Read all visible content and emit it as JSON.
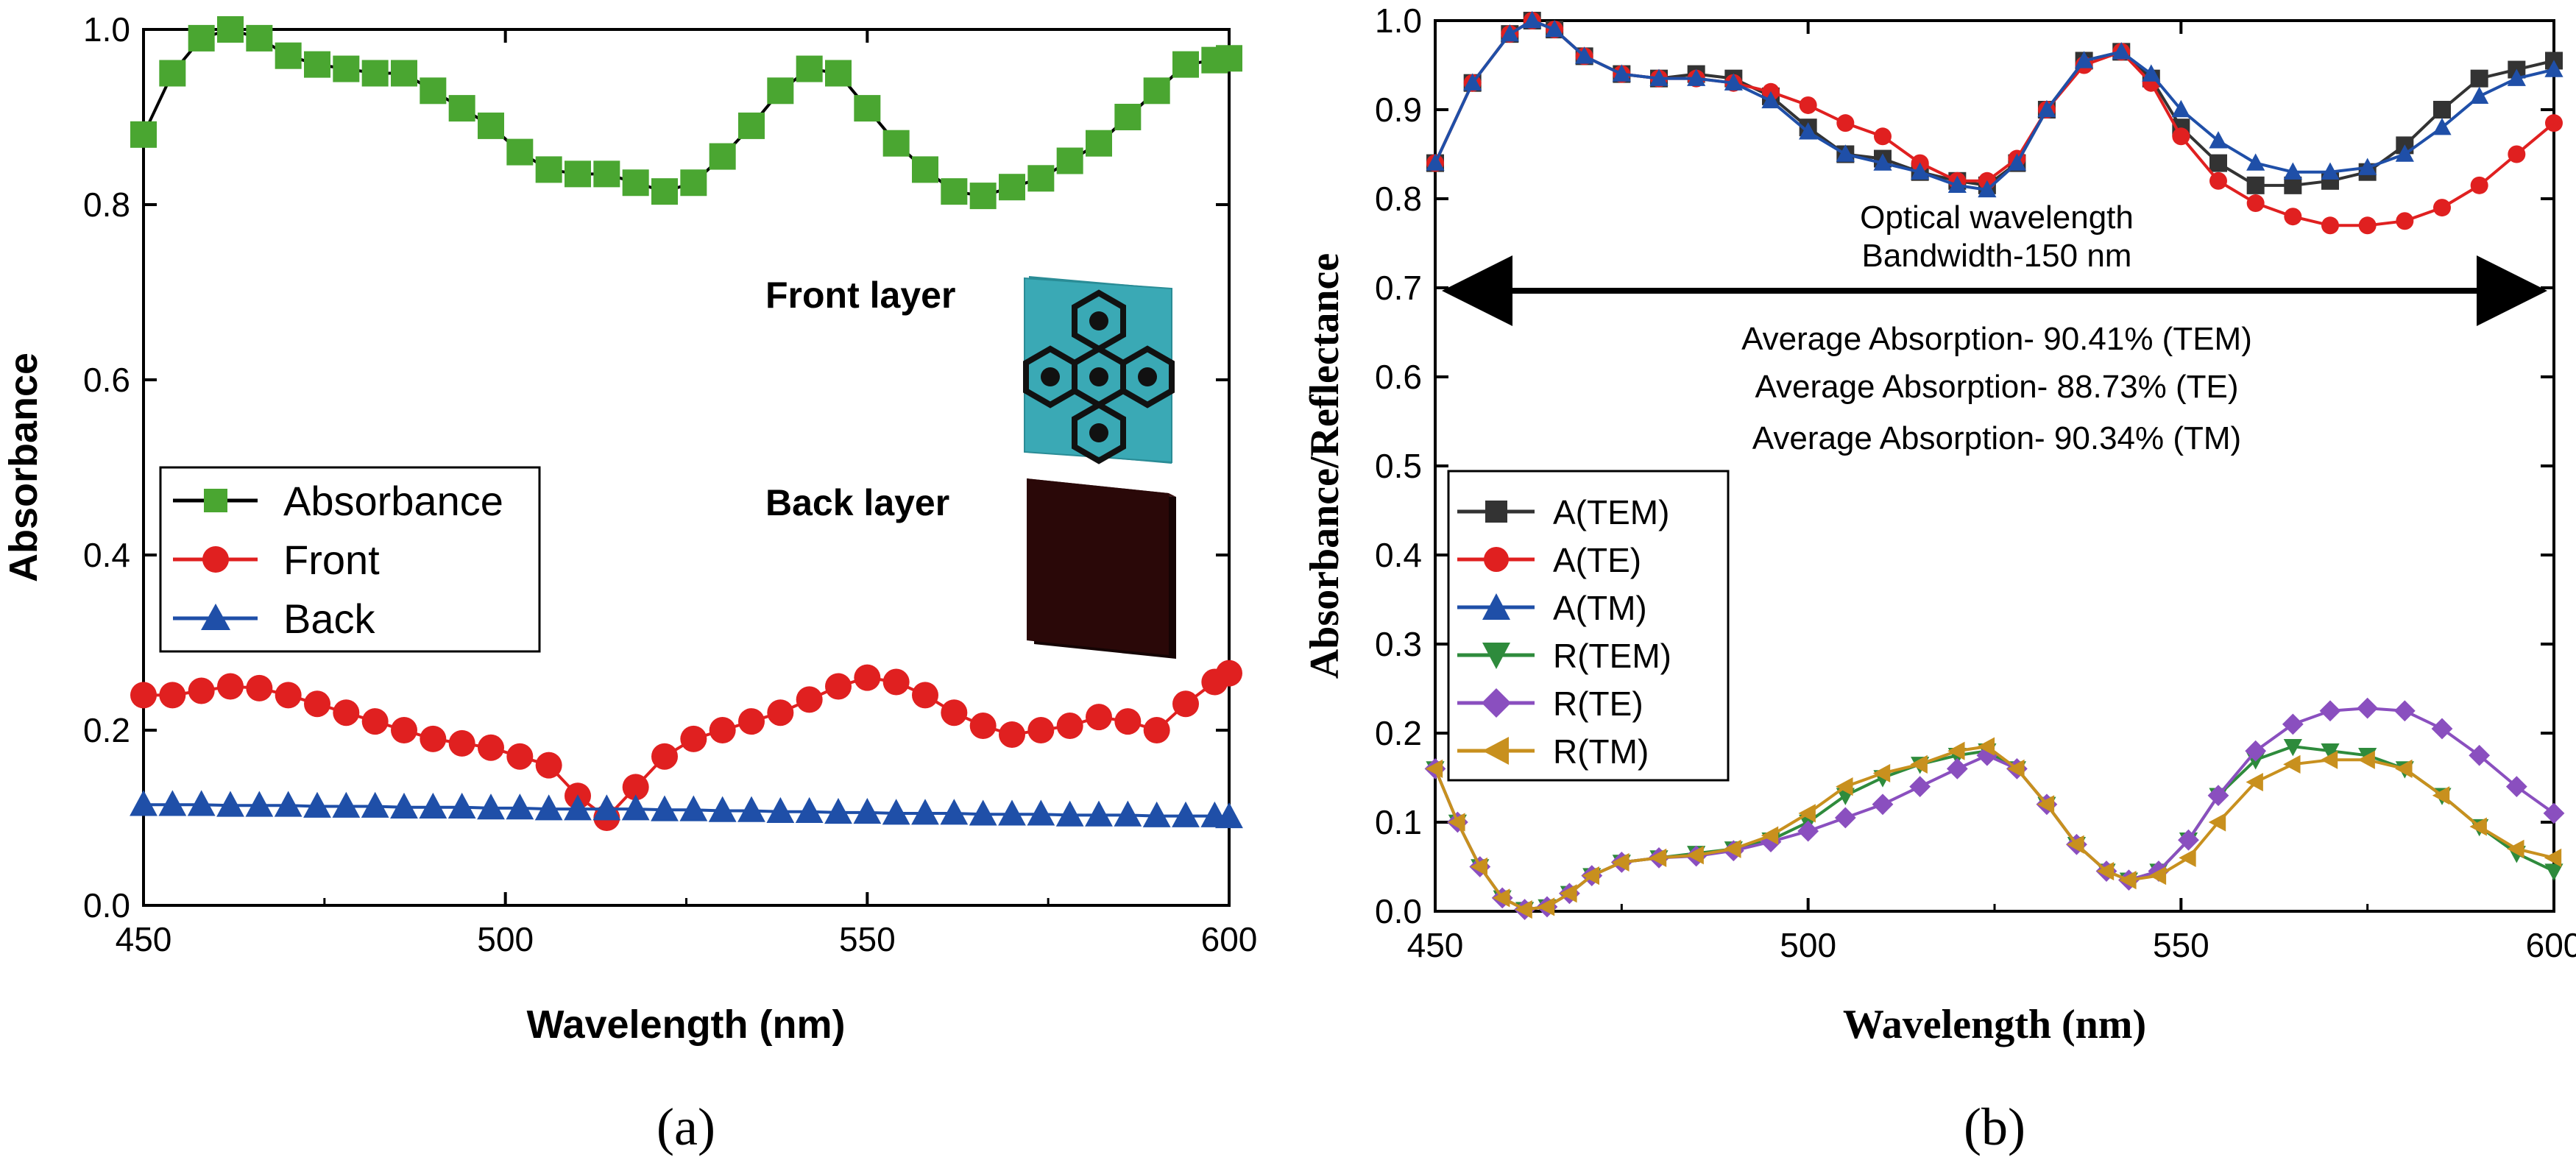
{
  "figure": {
    "panel_a_label": "(a)",
    "panel_b_label": "(b)",
    "colors": {
      "green": "#4aa631",
      "red": "#e02020",
      "blue": "#1f4fa8",
      "black": "#000000",
      "gray": "#333333",
      "darkgreen": "#2e8b3c",
      "purple": "#8a4fbf",
      "gold": "#c8901e",
      "teal": "#3aa9b5",
      "darkbrown": "#2a0808"
    }
  },
  "chart_data": [
    {
      "id": "a",
      "type": "line",
      "title": "",
      "xlabel": "Wavelength (nm)",
      "ylabel": "Absorbance",
      "xlim": [
        450,
        600
      ],
      "ylim": [
        0,
        1.0
      ],
      "xticks": [
        450,
        500,
        550,
        600
      ],
      "yticks": [
        0.0,
        0.2,
        0.4,
        0.6,
        0.8,
        1.0
      ],
      "legend": [
        "Absorbance",
        "Front",
        "Back"
      ],
      "insets": {
        "front_label": "Front layer",
        "back_label": "Back layer"
      },
      "series": [
        {
          "name": "Absorbance",
          "color": "#000000",
          "marker": "square",
          "marker_color": "#4aa631",
          "x": [
            450,
            454,
            458,
            462,
            466,
            470,
            474,
            478,
            482,
            486,
            490,
            494,
            498,
            502,
            506,
            510,
            514,
            518,
            522,
            526,
            530,
            534,
            538,
            542,
            546,
            550,
            554,
            558,
            562,
            566,
            570,
            574,
            578,
            582,
            586,
            590,
            594,
            598,
            600
          ],
          "y": [
            0.88,
            0.95,
            0.99,
            1.0,
            0.99,
            0.97,
            0.96,
            0.955,
            0.95,
            0.95,
            0.93,
            0.91,
            0.89,
            0.86,
            0.84,
            0.835,
            0.835,
            0.825,
            0.815,
            0.825,
            0.855,
            0.89,
            0.93,
            0.955,
            0.95,
            0.91,
            0.87,
            0.84,
            0.815,
            0.81,
            0.82,
            0.83,
            0.85,
            0.87,
            0.9,
            0.93,
            0.96,
            0.965,
            0.967
          ]
        },
        {
          "name": "Front",
          "color": "#e02020",
          "marker": "circle",
          "marker_color": "#e02020",
          "x": [
            450,
            454,
            458,
            462,
            466,
            470,
            474,
            478,
            482,
            486,
            490,
            494,
            498,
            502,
            506,
            510,
            514,
            518,
            522,
            526,
            530,
            534,
            538,
            542,
            546,
            550,
            554,
            558,
            562,
            566,
            570,
            574,
            578,
            582,
            586,
            590,
            594,
            598,
            600
          ],
          "y": [
            0.24,
            0.24,
            0.245,
            0.25,
            0.248,
            0.24,
            0.23,
            0.22,
            0.21,
            0.2,
            0.19,
            0.185,
            0.18,
            0.17,
            0.16,
            0.125,
            0.1,
            0.135,
            0.17,
            0.19,
            0.2,
            0.21,
            0.22,
            0.235,
            0.25,
            0.26,
            0.255,
            0.24,
            0.22,
            0.205,
            0.195,
            0.2,
            0.205,
            0.215,
            0.21,
            0.2,
            0.23,
            0.255,
            0.265
          ]
        },
        {
          "name": "Back",
          "color": "#1f4fa8",
          "marker": "triangle",
          "marker_color": "#1f4fa8",
          "x": [
            450,
            454,
            458,
            462,
            466,
            470,
            474,
            478,
            482,
            486,
            490,
            494,
            498,
            502,
            506,
            510,
            514,
            518,
            522,
            526,
            530,
            534,
            538,
            542,
            546,
            550,
            554,
            558,
            562,
            566,
            570,
            574,
            578,
            582,
            586,
            590,
            594,
            598,
            600
          ],
          "y": [
            0.115,
            0.115,
            0.115,
            0.114,
            0.114,
            0.114,
            0.113,
            0.113,
            0.113,
            0.112,
            0.112,
            0.112,
            0.111,
            0.111,
            0.11,
            0.11,
            0.11,
            0.11,
            0.109,
            0.109,
            0.108,
            0.108,
            0.107,
            0.107,
            0.106,
            0.106,
            0.105,
            0.105,
            0.105,
            0.104,
            0.104,
            0.104,
            0.103,
            0.103,
            0.103,
            0.102,
            0.102,
            0.102,
            0.101
          ]
        }
      ]
    },
    {
      "id": "b",
      "type": "line",
      "title": "",
      "xlabel": "Wavelength (nm)",
      "ylabel": "Absorbance/Reflectance",
      "xlim": [
        450,
        600
      ],
      "ylim": [
        0,
        1.0
      ],
      "xticks": [
        450,
        500,
        550,
        600
      ],
      "yticks": [
        0.0,
        0.1,
        0.2,
        0.3,
        0.4,
        0.5,
        0.6,
        0.7,
        0.8,
        0.9,
        1.0
      ],
      "legend": [
        "A(TEM)",
        "A(TE)",
        "A(TM)",
        "R(TEM)",
        "R(TE)",
        "R(TM)"
      ],
      "annotations": {
        "optical_line1": "Optical wavelength",
        "optical_line2": "Bandwidth-150 nm",
        "avg_tem": "Average Absorption- 90.41% (TEM)",
        "avg_te": "Average Absorption- 88.73% (TE)",
        "avg_tm": "Average Absorption- 90.34% (TM)"
      },
      "series": [
        {
          "name": "A(TEM)",
          "color": "#333333",
          "marker": "square",
          "marker_color": "#333333",
          "x": [
            450,
            455,
            460,
            463,
            466,
            470,
            475,
            480,
            485,
            490,
            495,
            500,
            505,
            510,
            515,
            520,
            524,
            528,
            532,
            537,
            542,
            546,
            550,
            555,
            560,
            565,
            570,
            575,
            580,
            585,
            590,
            595,
            600
          ],
          "y": [
            0.84,
            0.93,
            0.985,
            1.0,
            0.99,
            0.96,
            0.94,
            0.935,
            0.94,
            0.935,
            0.915,
            0.88,
            0.85,
            0.845,
            0.83,
            0.82,
            0.815,
            0.84,
            0.9,
            0.955,
            0.965,
            0.935,
            0.88,
            0.84,
            0.815,
            0.815,
            0.82,
            0.83,
            0.86,
            0.9,
            0.935,
            0.945,
            0.955
          ]
        },
        {
          "name": "A(TE)",
          "color": "#e02020",
          "marker": "circle",
          "marker_color": "#e02020",
          "x": [
            450,
            455,
            460,
            463,
            466,
            470,
            475,
            480,
            485,
            490,
            495,
            500,
            505,
            510,
            515,
            520,
            524,
            528,
            532,
            537,
            542,
            546,
            550,
            555,
            560,
            565,
            570,
            575,
            580,
            585,
            590,
            595,
            600
          ],
          "y": [
            0.84,
            0.93,
            0.985,
            1.0,
            0.99,
            0.96,
            0.94,
            0.935,
            0.935,
            0.93,
            0.92,
            0.905,
            0.885,
            0.87,
            0.84,
            0.82,
            0.82,
            0.845,
            0.9,
            0.95,
            0.965,
            0.93,
            0.87,
            0.82,
            0.795,
            0.78,
            0.77,
            0.77,
            0.775,
            0.79,
            0.815,
            0.85,
            0.885
          ]
        },
        {
          "name": "A(TM)",
          "color": "#1f4fa8",
          "marker": "triangle",
          "marker_color": "#1f4fa8",
          "x": [
            450,
            455,
            460,
            463,
            466,
            470,
            475,
            480,
            485,
            490,
            495,
            500,
            505,
            510,
            515,
            520,
            524,
            528,
            532,
            537,
            542,
            546,
            550,
            555,
            560,
            565,
            570,
            575,
            580,
            585,
            590,
            595,
            600
          ],
          "y": [
            0.84,
            0.93,
            0.985,
            1.0,
            0.99,
            0.96,
            0.94,
            0.935,
            0.935,
            0.93,
            0.91,
            0.875,
            0.85,
            0.84,
            0.83,
            0.815,
            0.81,
            0.84,
            0.9,
            0.955,
            0.965,
            0.94,
            0.9,
            0.865,
            0.84,
            0.83,
            0.83,
            0.835,
            0.85,
            0.88,
            0.915,
            0.935,
            0.945
          ]
        },
        {
          "name": "R(TEM)",
          "color": "#2e8b3c",
          "marker": "triangle-down",
          "marker_color": "#2e8b3c",
          "x": [
            450,
            453,
            456,
            459,
            462,
            465,
            468,
            471,
            475,
            480,
            485,
            490,
            495,
            500,
            505,
            510,
            515,
            520,
            524,
            528,
            532,
            536,
            540,
            543,
            547,
            551,
            555,
            560,
            565,
            570,
            575,
            580,
            585,
            590,
            595,
            600
          ],
          "y": [
            0.16,
            0.1,
            0.05,
            0.015,
            0.002,
            0.005,
            0.02,
            0.04,
            0.055,
            0.06,
            0.065,
            0.07,
            0.08,
            0.1,
            0.13,
            0.15,
            0.165,
            0.175,
            0.18,
            0.16,
            0.12,
            0.075,
            0.045,
            0.035,
            0.045,
            0.08,
            0.13,
            0.17,
            0.185,
            0.18,
            0.175,
            0.16,
            0.13,
            0.095,
            0.065,
            0.045
          ]
        },
        {
          "name": "R(TE)",
          "color": "#8a4fbf",
          "marker": "diamond",
          "marker_color": "#8a4fbf",
          "x": [
            450,
            453,
            456,
            459,
            462,
            465,
            468,
            471,
            475,
            480,
            485,
            490,
            495,
            500,
            505,
            510,
            515,
            520,
            524,
            528,
            532,
            536,
            540,
            543,
            547,
            551,
            555,
            560,
            565,
            570,
            575,
            580,
            585,
            590,
            595,
            600
          ],
          "y": [
            0.16,
            0.1,
            0.05,
            0.015,
            0.002,
            0.005,
            0.02,
            0.04,
            0.055,
            0.06,
            0.062,
            0.068,
            0.078,
            0.09,
            0.105,
            0.12,
            0.14,
            0.16,
            0.175,
            0.16,
            0.12,
            0.075,
            0.045,
            0.035,
            0.045,
            0.08,
            0.13,
            0.18,
            0.21,
            0.225,
            0.228,
            0.225,
            0.205,
            0.175,
            0.14,
            0.11
          ]
        },
        {
          "name": "R(TM)",
          "color": "#c8901e",
          "marker": "triangle-left",
          "marker_color": "#c8901e",
          "x": [
            450,
            453,
            456,
            459,
            462,
            465,
            468,
            471,
            475,
            480,
            485,
            490,
            495,
            500,
            505,
            510,
            515,
            520,
            524,
            528,
            532,
            536,
            540,
            543,
            547,
            551,
            555,
            560,
            565,
            570,
            575,
            580,
            585,
            590,
            595,
            600
          ],
          "y": [
            0.16,
            0.1,
            0.05,
            0.015,
            0.002,
            0.005,
            0.02,
            0.04,
            0.055,
            0.06,
            0.063,
            0.07,
            0.085,
            0.11,
            0.14,
            0.155,
            0.165,
            0.18,
            0.185,
            0.16,
            0.12,
            0.075,
            0.045,
            0.035,
            0.04,
            0.06,
            0.1,
            0.145,
            0.165,
            0.17,
            0.17,
            0.16,
            0.13,
            0.095,
            0.07,
            0.06
          ]
        }
      ]
    }
  ]
}
